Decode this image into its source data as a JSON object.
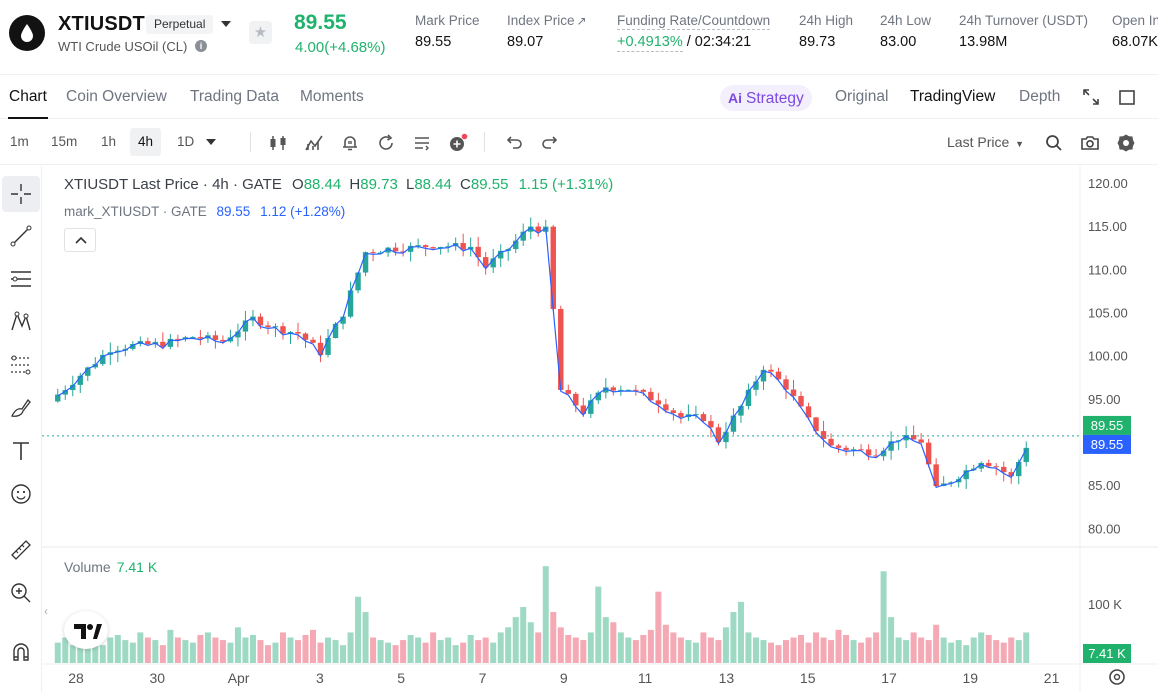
{
  "header": {
    "symbol": "XTIUSDT",
    "contract_type": "Perpetual",
    "full_name": "WTI Crude USOil (CL)",
    "last_price": "89.55",
    "change": "4.00(+4.68%)",
    "stats": [
      {
        "label": "Mark Price",
        "value": "89.55"
      },
      {
        "label": "Index Price",
        "value": "89.07"
      },
      {
        "label": "Funding Rate/Countdown",
        "value_green": "+0.4913%",
        "value_rest": " / 02:34:21"
      },
      {
        "label": "24h High",
        "value": "89.73"
      },
      {
        "label": "24h Low",
        "value": "83.00"
      },
      {
        "label": "24h Turnover (USDT)",
        "value": "13.98M"
      },
      {
        "label": "Open In",
        "value": "68.07K"
      }
    ]
  },
  "tabs": [
    "Chart",
    "Coin Overview",
    "Trading Data",
    "Moments"
  ],
  "right_tabs": {
    "strategy": "Strategy",
    "strategy_badge": "Ai",
    "original": "Original",
    "tradingview": "TradingView",
    "depth": "Depth"
  },
  "toolbar": {
    "timeframes": [
      "1m",
      "15m",
      "1h",
      "4h",
      "1D"
    ],
    "active_timeframe": "4h",
    "price_type": "Last Price"
  },
  "chart_legend": {
    "main": "XTIUSDT Last Price · 4h · GATE",
    "o_label": "O",
    "o": "88.44",
    "h_label": "H",
    "h": "89.73",
    "l_label": "L",
    "l": "88.44",
    "c_label": "C",
    "c": "89.55",
    "change": "1.15 (+1.31%)",
    "mark_label": "mark_XTIUSDT · GATE",
    "mark_value": "89.55",
    "mark_change": "1.12 (+1.28%)",
    "volume_label": "Volume",
    "volume_value": "7.41 K"
  },
  "colors": {
    "up": "#26a69a",
    "down": "#ef5350",
    "mark_line": "#2962ff",
    "price_tag": "#20b26c"
  },
  "chart_data": {
    "type": "candlestick",
    "title": "XTIUSDT Last Price · 4h · GATE",
    "ylim": [
      77.5,
      121.5
    ],
    "y_ticks": [
      "120.00",
      "115.00",
      "110.00",
      "105.00",
      "100.00",
      "95.00",
      "90.00",
      "85.00",
      "80.00"
    ],
    "x_ticks": [
      "28",
      "30",
      "Apr",
      "3",
      "5",
      "7",
      "9",
      "11",
      "13",
      "15",
      "17",
      "19",
      "21"
    ],
    "price_tag_last": "89.55",
    "price_tag_mark": "89.55",
    "volume_tick": "100 K",
    "volume_tag": "7.41 K",
    "series": [
      {
        "name": "mark_XTIUSDT",
        "type": "line"
      }
    ],
    "close_path": [
      [
        0,
        95.5
      ],
      [
        4,
        98.5
      ],
      [
        7,
        100.8
      ],
      [
        10,
        101.2
      ],
      [
        14,
        101.4
      ],
      [
        18,
        102.2
      ],
      [
        22,
        101.7
      ],
      [
        26,
        104.3
      ],
      [
        29,
        103.2
      ],
      [
        32,
        102.6
      ],
      [
        35,
        100.4
      ],
      [
        38,
        104.9
      ],
      [
        41,
        112.0
      ],
      [
        44,
        112.4
      ],
      [
        47,
        112.5
      ],
      [
        50,
        112.8
      ],
      [
        55,
        112.6
      ],
      [
        57,
        110.3
      ],
      [
        60,
        112.4
      ],
      [
        63,
        115.0
      ],
      [
        65,
        114.5
      ],
      [
        67,
        96.0
      ],
      [
        70,
        93.5
      ],
      [
        73,
        96.4
      ],
      [
        76,
        96.2
      ],
      [
        80,
        94.7
      ],
      [
        83,
        92.9
      ],
      [
        86,
        92.8
      ],
      [
        88,
        90.2
      ],
      [
        91,
        94.1
      ],
      [
        94,
        98.7
      ],
      [
        97,
        96.4
      ],
      [
        100,
        92.5
      ],
      [
        103,
        89.5
      ],
      [
        106,
        89.1
      ],
      [
        109,
        88.8
      ],
      [
        112,
        90.5
      ],
      [
        115,
        90.1
      ],
      [
        117,
        84.5
      ],
      [
        120,
        86.1
      ],
      [
        123,
        87.9
      ],
      [
        125,
        87.2
      ],
      [
        127,
        85.9
      ],
      [
        129,
        89.55
      ]
    ],
    "volume": [
      8,
      10,
      7,
      9,
      12,
      8,
      7,
      10,
      11,
      9,
      8,
      12,
      10,
      9,
      7,
      13,
      10,
      9,
      8,
      11,
      12,
      10,
      9,
      8,
      14,
      10,
      11,
      9,
      7,
      8,
      12,
      10,
      9,
      11,
      13,
      8,
      10,
      9,
      7,
      12,
      26,
      20,
      10,
      9,
      8,
      7,
      9,
      11,
      10,
      8,
      12,
      9,
      10,
      7,
      8,
      11,
      9,
      10,
      8,
      12,
      14,
      18,
      22,
      16,
      12,
      38,
      20,
      14,
      11,
      10,
      9,
      12,
      30,
      18,
      16,
      12,
      10,
      9,
      11,
      13,
      28,
      15,
      12,
      10,
      9,
      8,
      12,
      10,
      9,
      14,
      20,
      24,
      12,
      10,
      9,
      8,
      7,
      9,
      10,
      11,
      8,
      12,
      10,
      9,
      13,
      11,
      9,
      8,
      10,
      12,
      36,
      18,
      10,
      9,
      12,
      10,
      9,
      15,
      10,
      8,
      9,
      7,
      10,
      12,
      11,
      9,
      8,
      10,
      9,
      12,
      11,
      9,
      8,
      22,
      18,
      12,
      14,
      10,
      9,
      8,
      11,
      10,
      9,
      7,
      8,
      24,
      42,
      14,
      12,
      9,
      8,
      10,
      20,
      12,
      9,
      8,
      10,
      11,
      9,
      14,
      16,
      10,
      8,
      7
    ]
  }
}
